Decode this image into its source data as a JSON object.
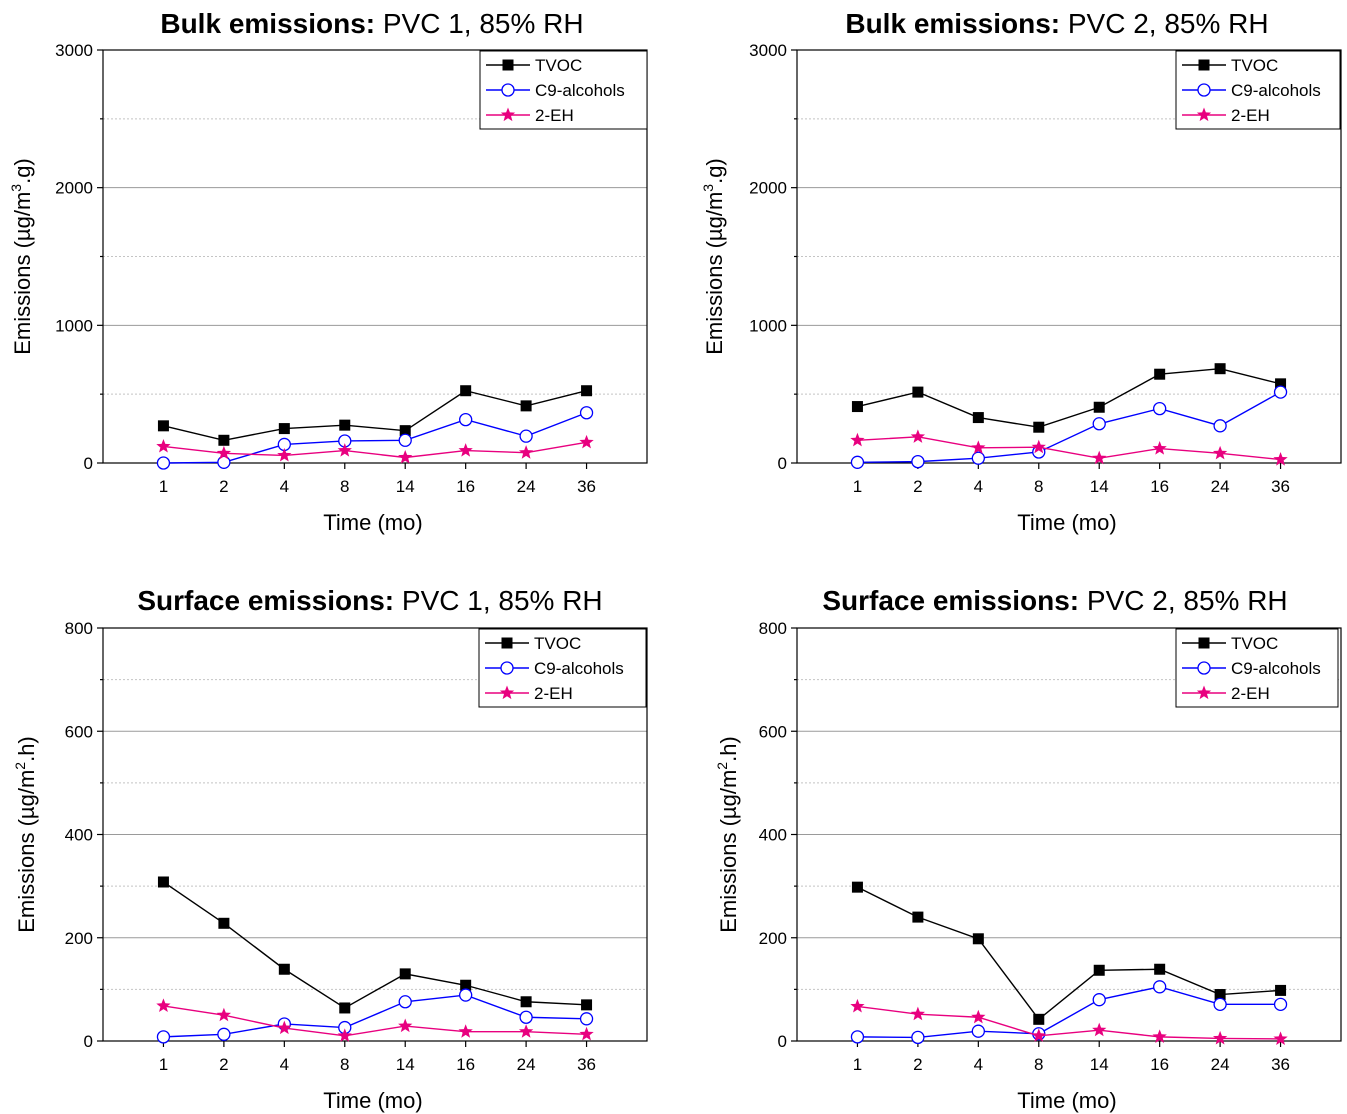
{
  "chart_data": [
    {
      "type": "line",
      "title_bold": "Bulk emissions:",
      "title_rest": "PVC 1, 85% RH",
      "xlabel": "Time (mo)",
      "ylabel_pre": "Emissions (",
      "ylabel_mu": "µ",
      "ylabel_unit": "g/m",
      "ylabel_sup": "3",
      "ylabel_post": ".g)",
      "categories": [
        "1",
        "2",
        "4",
        "8",
        "14",
        "16",
        "24",
        "36"
      ],
      "ylim": [
        0,
        3000
      ],
      "yticks": [
        "0",
        "1000",
        "2000",
        "3000"
      ],
      "minor_step": 500,
      "major_step": 1000,
      "grid": true,
      "legend_position": "top-right",
      "series": [
        {
          "name": "TVOC",
          "color": "#000000",
          "marker": "square",
          "values": [
            270,
            165,
            250,
            275,
            235,
            525,
            415,
            525
          ]
        },
        {
          "name": "C9-alcohols",
          "color": "#0000ff",
          "marker": "circle-open",
          "values": [
            0,
            5,
            135,
            160,
            165,
            315,
            195,
            365
          ]
        },
        {
          "name": "2-EH",
          "color": "#e8007f",
          "marker": "star",
          "values": [
            120,
            70,
            55,
            90,
            40,
            90,
            75,
            150
          ]
        }
      ]
    },
    {
      "type": "line",
      "title_bold": "Bulk emissions:",
      "title_rest": "PVC 2, 85% RH",
      "xlabel": "Time (mo)",
      "ylabel_pre": "Emissions (",
      "ylabel_mu": "µ",
      "ylabel_unit": "g/m",
      "ylabel_sup": "3",
      "ylabel_post": ".g)",
      "categories": [
        "1",
        "2",
        "4",
        "8",
        "14",
        "16",
        "24",
        "36"
      ],
      "ylim": [
        0,
        3000
      ],
      "yticks": [
        "0",
        "1000",
        "2000",
        "3000"
      ],
      "minor_step": 500,
      "major_step": 1000,
      "grid": true,
      "legend_position": "top-right",
      "series": [
        {
          "name": "TVOC",
          "color": "#000000",
          "marker": "square",
          "values": [
            410,
            515,
            330,
            260,
            405,
            645,
            685,
            575
          ]
        },
        {
          "name": "C9-alcohols",
          "color": "#0000ff",
          "marker": "circle-open",
          "values": [
            5,
            10,
            35,
            80,
            285,
            395,
            270,
            515
          ]
        },
        {
          "name": "2-EH",
          "color": "#e8007f",
          "marker": "star",
          "values": [
            165,
            190,
            110,
            115,
            35,
            105,
            70,
            25
          ]
        }
      ]
    },
    {
      "type": "line",
      "title_bold": "Surface emissions:",
      "title_rest": "PVC 1, 85% RH",
      "xlabel": "Time (mo)",
      "ylabel_pre": "Emissions (",
      "ylabel_mu": "µ",
      "ylabel_unit": "g/m",
      "ylabel_sup": "2",
      "ylabel_post": ".h)",
      "categories": [
        "1",
        "2",
        "4",
        "8",
        "14",
        "16",
        "24",
        "36"
      ],
      "ylim": [
        0,
        800
      ],
      "yticks": [
        "0",
        "200",
        "400",
        "600",
        "800"
      ],
      "minor_step": 100,
      "major_step": 200,
      "grid": true,
      "legend_position": "top-right",
      "series": [
        {
          "name": "TVOC",
          "color": "#000000",
          "marker": "square",
          "values": [
            308,
            228,
            139,
            64,
            130,
            108,
            76,
            70
          ]
        },
        {
          "name": "C9-alcohols",
          "color": "#0000ff",
          "marker": "circle-open",
          "values": [
            8,
            13,
            33,
            26,
            76,
            89,
            46,
            43
          ]
        },
        {
          "name": "2-EH",
          "color": "#e8007f",
          "marker": "star",
          "values": [
            68,
            50,
            25,
            10,
            29,
            18,
            18,
            13
          ]
        }
      ]
    },
    {
      "type": "line",
      "title_bold": "Surface emissions:",
      "title_rest": "PVC 2, 85% RH",
      "xlabel": "Time (mo)",
      "ylabel_pre": "Emissions (",
      "ylabel_mu": "µ",
      "ylabel_unit": "g/m",
      "ylabel_sup": "2",
      "ylabel_post": ".h)",
      "categories": [
        "1",
        "2",
        "4",
        "8",
        "14",
        "16",
        "24",
        "36"
      ],
      "ylim": [
        0,
        800
      ],
      "yticks": [
        "0",
        "200",
        "400",
        "600",
        "800"
      ],
      "minor_step": 100,
      "major_step": 200,
      "grid": true,
      "legend_position": "top-right",
      "series": [
        {
          "name": "TVOC",
          "color": "#000000",
          "marker": "square",
          "values": [
            298,
            240,
            198,
            42,
            137,
            139,
            90,
            98
          ]
        },
        {
          "name": "C9-alcohols",
          "color": "#0000ff",
          "marker": "circle-open",
          "values": [
            8,
            7,
            19,
            14,
            80,
            105,
            71,
            71
          ]
        },
        {
          "name": "2-EH",
          "color": "#e8007f",
          "marker": "star",
          "values": [
            67,
            52,
            46,
            10,
            21,
            8,
            5,
            4
          ]
        }
      ]
    }
  ]
}
